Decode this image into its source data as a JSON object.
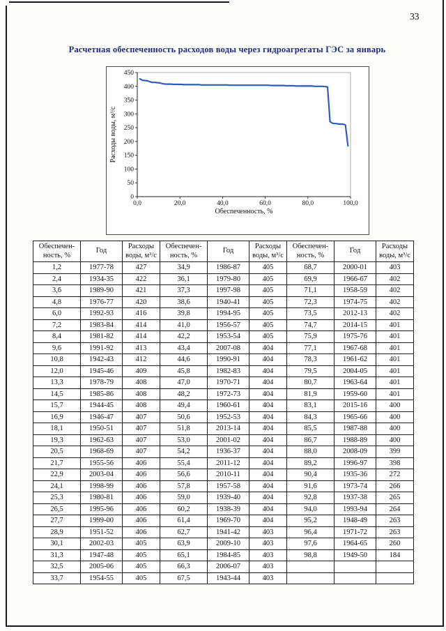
{
  "page_number": "33",
  "title": "Расчетная обеспеченность расходов воды через гидроагрегаты ГЭС за январь",
  "colors": {
    "title_text": "#1c2b80",
    "chart_line": "#2e5cb8",
    "body_text": "#111111"
  },
  "chart_data": {
    "type": "line",
    "title": "",
    "xlabel": "Обеспеченность, %",
    "ylabel": "Расходы воды, м³/с",
    "xlim": [
      0,
      100
    ],
    "ylim": [
      0,
      450
    ],
    "grid": false,
    "legend": false,
    "line_color": "#2e5cb8",
    "x_ticks": [
      {
        "v": 0,
        "label": "0,0"
      },
      {
        "v": 20,
        "label": "20,0"
      },
      {
        "v": 40,
        "label": "40,0"
      },
      {
        "v": 60,
        "label": "60,0"
      },
      {
        "v": 80,
        "label": "80,0"
      },
      {
        "v": 100,
        "label": "100,0"
      }
    ],
    "y_ticks": [
      {
        "v": 0,
        "label": "0"
      },
      {
        "v": 50,
        "label": "50"
      },
      {
        "v": 100,
        "label": "100"
      },
      {
        "v": 150,
        "label": "150"
      },
      {
        "v": 200,
        "label": "200"
      },
      {
        "v": 250,
        "label": "250"
      },
      {
        "v": 300,
        "label": "300"
      },
      {
        "v": 350,
        "label": "350"
      },
      {
        "v": 400,
        "label": "400"
      },
      {
        "v": 450,
        "label": "450"
      }
    ],
    "x": [
      1.2,
      2.4,
      3.6,
      4.8,
      6.0,
      7.2,
      8.4,
      9.6,
      10.8,
      12.0,
      13.3,
      14.5,
      15.7,
      16.9,
      18.1,
      19.3,
      20.5,
      21.7,
      22.9,
      24.1,
      25.3,
      26.5,
      27.7,
      28.9,
      30.1,
      31.3,
      32.5,
      33.7,
      34.9,
      36.1,
      37.3,
      38.6,
      39.8,
      41.0,
      42.2,
      43.4,
      44.6,
      45.8,
      47.0,
      48.2,
      49.4,
      50.6,
      51.8,
      53.0,
      54.2,
      55.4,
      56.6,
      57.8,
      59.0,
      60.2,
      61.4,
      62.7,
      63.9,
      65.1,
      66.3,
      67.5,
      68.7,
      69.9,
      71.1,
      72.3,
      73.5,
      74.7,
      75.9,
      77.1,
      78.3,
      79.5,
      80.7,
      81.9,
      83.1,
      84.3,
      85.5,
      86.7,
      88.0,
      89.2,
      90.4,
      91.6,
      92.8,
      94.0,
      95.2,
      96.4,
      97.6,
      98.8
    ],
    "y": [
      427,
      422,
      421,
      420,
      416,
      414,
      414,
      413,
      412,
      409,
      408,
      408,
      408,
      407,
      407,
      407,
      407,
      406,
      406,
      406,
      406,
      406,
      406,
      406,
      405,
      405,
      405,
      405,
      405,
      405,
      405,
      405,
      405,
      405,
      405,
      404,
      404,
      404,
      404,
      404,
      404,
      404,
      404,
      404,
      404,
      404,
      404,
      404,
      404,
      404,
      404,
      403,
      403,
      403,
      403,
      403,
      403,
      402,
      402,
      402,
      402,
      401,
      401,
      401,
      401,
      401,
      401,
      401,
      400,
      400,
      400,
      400,
      399,
      398,
      272,
      266,
      265,
      264,
      263,
      263,
      260,
      184
    ]
  },
  "table": {
    "headers": [
      "Обеспечен-\nность, %",
      "Год",
      "Расходы\nводы, м³/с",
      "Обеспечен-\nность, %",
      "Год",
      "Расходы\nводы, м³/с",
      "Обеспечен-\nность, %",
      "Год",
      "Расходы\nводы, м³/с"
    ],
    "rows": [
      [
        "1,2",
        "1977-78",
        "427",
        "34,9",
        "1986-87",
        "405",
        "68,7",
        "2000-01",
        "403"
      ],
      [
        "2,4",
        "1934-35",
        "422",
        "36,1",
        "1979-80",
        "405",
        "69,9",
        "1966-67",
        "402"
      ],
      [
        "3,6",
        "1989-90",
        "421",
        "37,3",
        "1997-98",
        "405",
        "71,1",
        "1958-59",
        "402"
      ],
      [
        "4,8",
        "1976-77",
        "420",
        "38,6",
        "1940-41",
        "405",
        "72,3",
        "1974-75",
        "402"
      ],
      [
        "6,0",
        "1992-93",
        "416",
        "39,8",
        "1994-95",
        "405",
        "73,5",
        "2012-13",
        "402"
      ],
      [
        "7,2",
        "1983-84",
        "414",
        "41,0",
        "1956-57",
        "405",
        "74,7",
        "2014-15",
        "401"
      ],
      [
        "8,4",
        "1981-82",
        "414",
        "42,2",
        "1953-54",
        "405",
        "75,9",
        "1975-76",
        "401"
      ],
      [
        "9,6",
        "1991-92",
        "413",
        "43,4",
        "2007-08",
        "404",
        "77,1",
        "1967-68",
        "401"
      ],
      [
        "10,8",
        "1942-43",
        "412",
        "44,6",
        "1990-91",
        "404",
        "78,3",
        "1961-62",
        "401"
      ],
      [
        "12,0",
        "1945-46",
        "409",
        "45,8",
        "1982-83",
        "404",
        "79,5",
        "2004-05",
        "401"
      ],
      [
        "13,3",
        "1978-79",
        "408",
        "47,0",
        "1970-71",
        "404",
        "80,7",
        "1963-64",
        "401"
      ],
      [
        "14,5",
        "1985-86",
        "408",
        "48,2",
        "1972-73",
        "404",
        "81,9",
        "1959-60",
        "401"
      ],
      [
        "15,7",
        "1944-45",
        "408",
        "49,4",
        "1960-61",
        "404",
        "83,1",
        "2015-16",
        "400"
      ],
      [
        "16,9",
        "1946-47",
        "407",
        "50,6",
        "1952-53",
        "404",
        "84,3",
        "1965-66",
        "400"
      ],
      [
        "18,1",
        "1950-51",
        "407",
        "51,8",
        "2013-14",
        "404",
        "85,5",
        "1987-88",
        "400"
      ],
      [
        "19,3",
        "1962-63",
        "407",
        "53,0",
        "2001-02",
        "404",
        "86,7",
        "1988-89",
        "400"
      ],
      [
        "20,5",
        "1968-69",
        "407",
        "54,2",
        "1936-37",
        "404",
        "88,0",
        "2008-09",
        "399"
      ],
      [
        "21,7",
        "1955-56",
        "406",
        "55,4",
        "2011-12",
        "404",
        "89,2",
        "1996-97",
        "398"
      ],
      [
        "22,9",
        "2003-04",
        "406",
        "56,6",
        "2010-11",
        "404",
        "90,4",
        "1935-36",
        "272"
      ],
      [
        "24,1",
        "1998-99",
        "406",
        "57,8",
        "1957-58",
        "404",
        "91,6",
        "1973-74",
        "266"
      ],
      [
        "25,3",
        "1980-81",
        "406",
        "59,0",
        "1939-40",
        "404",
        "92,8",
        "1937-38",
        "265"
      ],
      [
        "26,5",
        "1995-96",
        "406",
        "60,2",
        "1938-39",
        "404",
        "94,0",
        "1993-94",
        "264"
      ],
      [
        "27,7",
        "1999-00",
        "406",
        "61,4",
        "1969-70",
        "404",
        "95,2",
        "1948-49",
        "263"
      ],
      [
        "28,9",
        "1951-52",
        "406",
        "62,7",
        "1941-42",
        "403",
        "96,4",
        "1971-72",
        "263"
      ],
      [
        "30,1",
        "2002-03",
        "405",
        "63,9",
        "2009-10",
        "403",
        "97,6",
        "1964-65",
        "260"
      ],
      [
        "31,3",
        "1947-48",
        "405",
        "65,1",
        "1984-85",
        "403",
        "98,8",
        "1949-50",
        "184"
      ],
      [
        "32,5",
        "2005-06",
        "405",
        "66,3",
        "2006-07",
        "403",
        "",
        "",
        ""
      ],
      [
        "33,7",
        "1954-55",
        "405",
        "67,5",
        "1943-44",
        "403",
        "",
        "",
        ""
      ]
    ]
  }
}
